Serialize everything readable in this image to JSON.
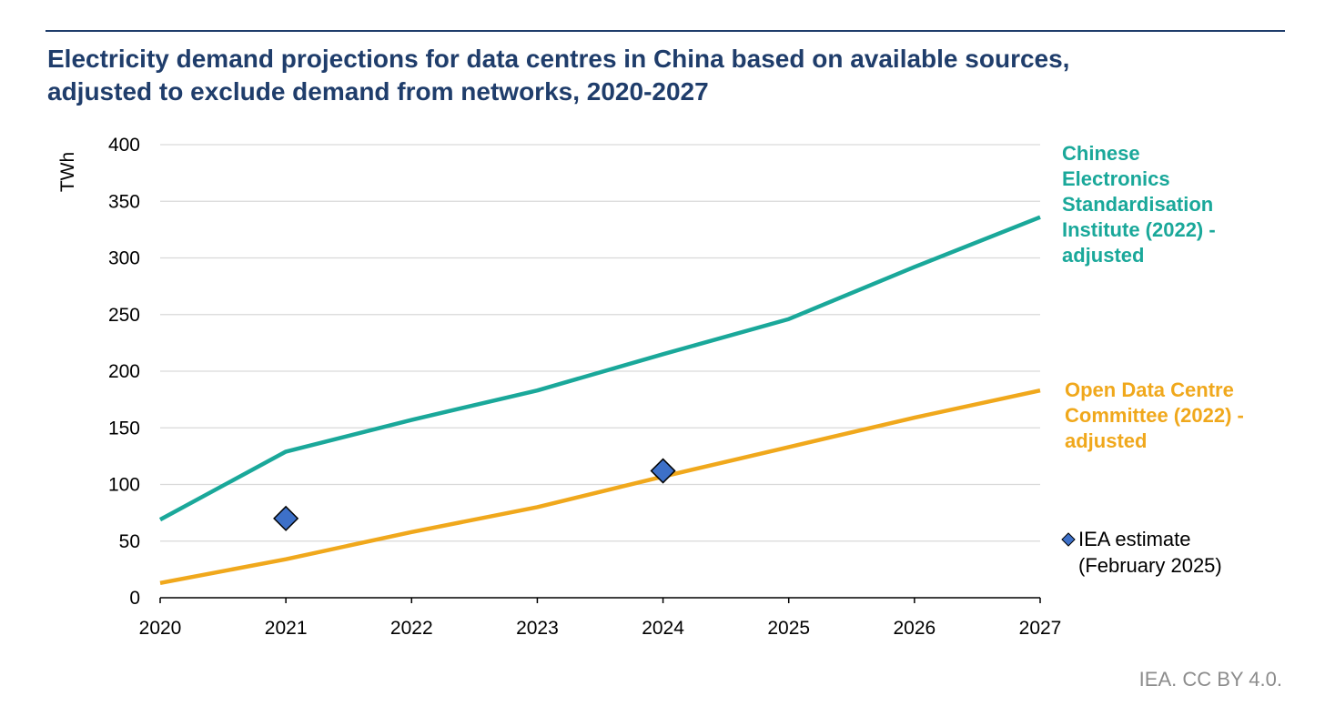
{
  "title_lines": [
    "Electricity demand projections for data centres in China based on available sources,",
    "adjusted to exclude demand from networks, 2020-2027"
  ],
  "credit": "IEA. CC BY 4.0.",
  "colors": {
    "title": "#1f3d6b",
    "cesi": "#1aa89a",
    "odcc": "#f0a81c",
    "iea": "#3d70c8"
  },
  "chart_data": {
    "type": "line",
    "ylabel": "TWh",
    "ylim": [
      0,
      400
    ],
    "yticks": [
      0,
      50,
      100,
      150,
      200,
      250,
      300,
      350,
      400
    ],
    "x": [
      2020,
      2021,
      2022,
      2023,
      2024,
      2025,
      2026,
      2027
    ],
    "xlim": [
      2020,
      2027
    ],
    "grid": true,
    "series": [
      {
        "name": "Chinese Electronics Standardisation Institute (2022) - adjusted",
        "label_lines": [
          "Chinese",
          "Electronics",
          "Standardisation",
          "Institute (2022) -",
          "adjusted"
        ],
        "color": "#1aa89a",
        "values": [
          69,
          129,
          157,
          183,
          215,
          246,
          292,
          336
        ]
      },
      {
        "name": "Open Data Centre Committee (2022) - adjusted",
        "label_lines": [
          "Open Data Centre",
          "Committee (2022) -",
          "adjusted"
        ],
        "color": "#f0a81c",
        "values": [
          13,
          34,
          58,
          80,
          107,
          133,
          159,
          183
        ]
      }
    ],
    "markers": {
      "name": "IEA estimate (February 2025)",
      "label_lines": [
        "IEA estimate",
        "(February 2025)"
      ],
      "color": "#3d70c8",
      "points": [
        {
          "x": 2021,
          "y": 70
        },
        {
          "x": 2024,
          "y": 112
        }
      ]
    }
  }
}
